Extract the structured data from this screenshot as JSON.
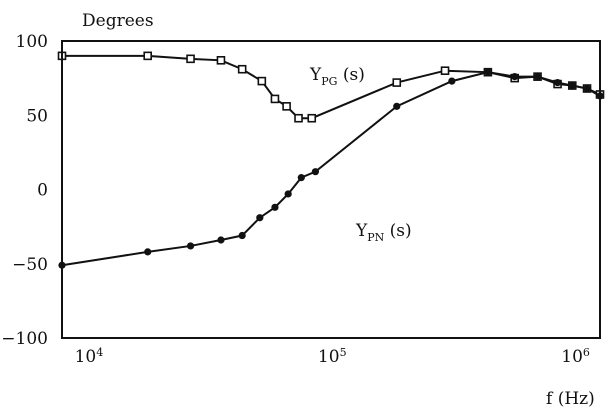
{
  "chart_data": {
    "type": "line",
    "ylabel": "Degrees",
    "xlabel": "f (Hz)",
    "xscale": "log",
    "xlim": [
      8000,
      1300000
    ],
    "ylim": [
      -100,
      100
    ],
    "grid": false,
    "legend": "none",
    "yticks": [
      100,
      50,
      0,
      -50,
      -100
    ],
    "ytick_labels": [
      "100",
      "50",
      "0",
      "−50",
      "−100"
    ],
    "xticks": [
      10000,
      100000,
      1000000
    ],
    "xtick_labels": [
      {
        "base": "10",
        "exp": "4"
      },
      {
        "base": "10",
        "exp": "5"
      },
      {
        "base": "10",
        "exp": "6"
      }
    ],
    "series": [
      {
        "label_main": "Y",
        "label_sub": "PG",
        "label_suffix": " (s)",
        "marker": "square",
        "color": "#111111",
        "points": [
          [
            8000,
            90
          ],
          [
            18000,
            90
          ],
          [
            27000,
            88
          ],
          [
            36000,
            87
          ],
          [
            44000,
            81
          ],
          [
            53000,
            73
          ],
          [
            60000,
            61
          ],
          [
            67000,
            56
          ],
          [
            75000,
            48
          ],
          [
            85000,
            48
          ],
          [
            190000,
            72
          ],
          [
            300000,
            80
          ],
          [
            450000,
            79
          ],
          [
            580000,
            75
          ],
          [
            720000,
            76
          ],
          [
            870000,
            71
          ],
          [
            1000000,
            70
          ],
          [
            1150000,
            68
          ],
          [
            1300000,
            64
          ]
        ]
      },
      {
        "label_main": "Y",
        "label_sub": "PN",
        "label_suffix": " (s)",
        "marker": "dot",
        "color": "#111111",
        "points": [
          [
            8000,
            -51
          ],
          [
            18000,
            -42
          ],
          [
            27000,
            -38
          ],
          [
            36000,
            -34
          ],
          [
            44000,
            -31
          ],
          [
            52000,
            -19
          ],
          [
            60000,
            -12
          ],
          [
            68000,
            -3
          ],
          [
            77000,
            8
          ],
          [
            88000,
            12
          ],
          [
            190000,
            56
          ],
          [
            320000,
            73
          ],
          [
            450000,
            79
          ],
          [
            580000,
            76
          ],
          [
            720000,
            76
          ],
          [
            870000,
            72
          ],
          [
            1000000,
            70
          ],
          [
            1150000,
            68
          ],
          [
            1300000,
            63
          ]
        ]
      }
    ]
  }
}
